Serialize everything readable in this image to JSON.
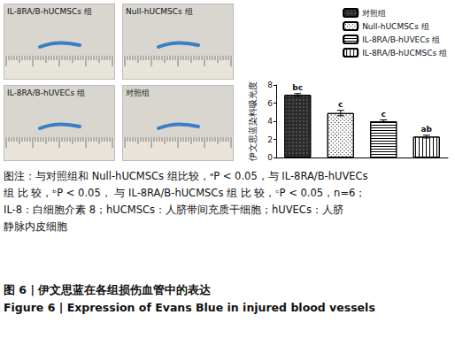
{
  "photos": [
    {
      "label": "IL-8RA/B-hUCMSCs 组"
    },
    {
      "label": "Null-hUCMSCs 组"
    },
    {
      "label": "IL-8RA/B-hUVECs 组"
    },
    {
      "label": "对照组"
    }
  ],
  "chart_data": {
    "type": "bar",
    "ylabel": "伊文思蓝染料吸光度",
    "categories": [
      null,
      null,
      null,
      null
    ],
    "series": [
      {
        "name": "对照组",
        "color": "#2b2b2b",
        "values": [
          6.9,
          null,
          null,
          null
        ],
        "errors": [
          0.15,
          null,
          null,
          null
        ],
        "annotations": [
          "bc",
          null,
          null,
          null
        ]
      },
      {
        "name": "Null-hUCMSCs 组",
        "color": "#ffffff",
        "values": [
          null,
          4.9,
          null,
          null
        ],
        "errors": [
          null,
          0.3,
          null,
          null
        ],
        "annotations": [
          null,
          "c",
          null,
          null
        ]
      },
      {
        "name": "IL-8RA/B-hUVECs 组",
        "color": "#ffffff",
        "values": [
          null,
          null,
          4.0,
          null
        ],
        "errors": [
          null,
          null,
          0.15,
          null
        ],
        "annotations": [
          null,
          null,
          "c",
          null
        ]
      },
      {
        "name": "IL-8RA/B-hUCMSCs 组",
        "color": "#ffffff",
        "values": [
          null,
          null,
          null,
          2.3
        ],
        "errors": [
          null,
          null,
          null,
          0.15
        ],
        "annotations": [
          null,
          null,
          null,
          "ab"
        ]
      }
    ],
    "ylim": [
      0,
      8
    ],
    "yticks": [
      0,
      2,
      4,
      6,
      8
    ],
    "grid": false,
    "legend": "upper right",
    "tick_labels": "y"
  },
  "caption": {
    "lines": [
      "图注：与对照组和 Null-hUCMSCs 组比较，ᵃP < 0.05，与 IL-8RA/B-hUVECs",
      "组 比 较，ᵇP < 0.05， 与 IL-8RA/B-hUCMSCs 组 比 较，ᶜP < 0.05，n=6；",
      "IL-8：白细胞介素 8；hUCMSCs：人脐带间充质干细胞；hUVECs：人脐",
      "静脉内皮细胞"
    ],
    "title_zh": "图 6 | 伊文思蓝在各组损伤血管中的表达",
    "title_en": "Figure 6 | Expression of Evans Blue in injured blood vessels"
  }
}
